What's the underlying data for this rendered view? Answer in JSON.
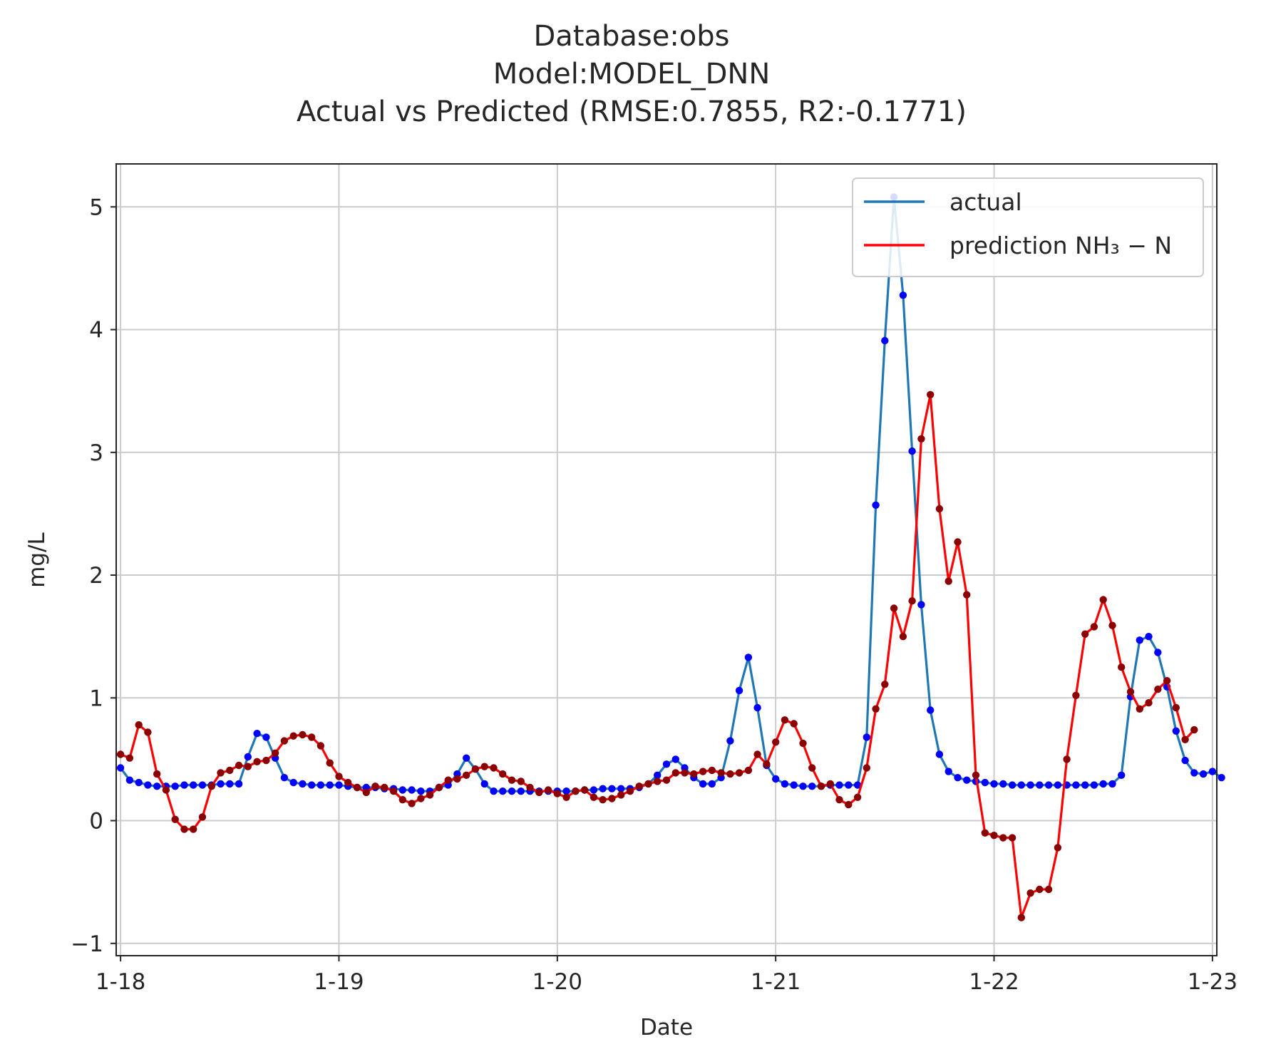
{
  "chart_data": {
    "type": "line",
    "title_lines": [
      "Database:obs",
      "Model:MODEL_DNN",
      "Actual vs Predicted (RMSE:0.7855, R2:-0.1771)"
    ],
    "xlabel": "Date",
    "ylabel": "mg/L",
    "x_tick_labels": [
      "1-18",
      "1-19",
      "1-20",
      "1-21",
      "1-22",
      "1-23"
    ],
    "y_tick_labels": [
      "−1",
      "0",
      "1",
      "2",
      "3",
      "4",
      "5"
    ],
    "y_ticks": [
      -1,
      0,
      1,
      2,
      3,
      4,
      5
    ],
    "ylim": [
      -1.1,
      5.35
    ],
    "xlim_days": [
      -0.02,
      5.02
    ],
    "x_step_hours": 1,
    "grid": true,
    "legend_position": "top-right",
    "series": [
      {
        "name": "actual",
        "color": "#1f77b4",
        "marker_color": "#0000ff",
        "values": [
          0.43,
          0.33,
          0.31,
          0.29,
          0.28,
          0.28,
          0.28,
          0.29,
          0.29,
          0.29,
          0.29,
          0.3,
          0.3,
          0.3,
          0.52,
          0.71,
          0.68,
          0.51,
          0.35,
          0.31,
          0.3,
          0.29,
          0.29,
          0.29,
          0.29,
          0.28,
          0.27,
          0.27,
          0.27,
          0.26,
          0.26,
          0.25,
          0.25,
          0.24,
          0.24,
          0.27,
          0.29,
          0.38,
          0.51,
          0.42,
          0.3,
          0.24,
          0.24,
          0.24,
          0.24,
          0.24,
          0.24,
          0.24,
          0.24,
          0.24,
          0.24,
          0.25,
          0.25,
          0.26,
          0.26,
          0.26,
          0.26,
          0.27,
          0.3,
          0.37,
          0.46,
          0.5,
          0.43,
          0.35,
          0.3,
          0.3,
          0.35,
          0.65,
          1.06,
          1.33,
          0.92,
          0.45,
          0.34,
          0.3,
          0.29,
          0.28,
          0.28,
          0.28,
          0.29,
          0.29,
          0.29,
          0.29,
          0.68,
          2.57,
          3.91,
          5.08,
          4.28,
          3.01,
          1.76,
          0.9,
          0.54,
          0.4,
          0.35,
          0.33,
          0.32,
          0.31,
          0.3,
          0.3,
          0.29,
          0.29,
          0.29,
          0.29,
          0.29,
          0.29,
          0.29,
          0.29,
          0.29,
          0.29,
          0.3,
          0.3,
          0.37,
          1.01,
          1.47,
          1.5,
          1.37,
          1.09,
          0.73,
          0.49,
          0.39,
          0.38,
          0.4,
          0.35
        ]
      },
      {
        "name": "prediction NH₃ − N",
        "color": "#ff0000",
        "marker_color": "#8b0000",
        "values": [
          0.54,
          0.51,
          0.78,
          0.72,
          0.38,
          0.25,
          0.01,
          -0.07,
          -0.07,
          0.03,
          0.28,
          0.39,
          0.41,
          0.45,
          0.44,
          0.48,
          0.49,
          0.55,
          0.65,
          0.69,
          0.7,
          0.68,
          0.61,
          0.47,
          0.36,
          0.31,
          0.27,
          0.23,
          0.28,
          0.27,
          0.24,
          0.17,
          0.14,
          0.18,
          0.21,
          0.27,
          0.33,
          0.34,
          0.37,
          0.42,
          0.44,
          0.43,
          0.38,
          0.33,
          0.32,
          0.27,
          0.23,
          0.25,
          0.22,
          0.19,
          0.24,
          0.25,
          0.19,
          0.17,
          0.18,
          0.21,
          0.24,
          0.28,
          0.3,
          0.32,
          0.33,
          0.39,
          0.39,
          0.38,
          0.4,
          0.41,
          0.39,
          0.38,
          0.39,
          0.41,
          0.54,
          0.46,
          0.64,
          0.82,
          0.79,
          0.63,
          0.43,
          0.28,
          0.3,
          0.17,
          0.13,
          0.19,
          0.43,
          0.91,
          1.11,
          1.73,
          1.5,
          1.79,
          3.11,
          3.47,
          2.54,
          1.95,
          2.27,
          1.84,
          0.37,
          -0.1,
          -0.12,
          -0.14,
          -0.14,
          -0.79,
          -0.59,
          -0.56,
          -0.56,
          -0.22,
          0.5,
          1.02,
          1.52,
          1.58,
          1.8,
          1.59,
          1.25,
          1.05,
          0.91,
          0.96,
          1.07,
          1.14,
          0.92,
          0.66,
          0.74
        ]
      }
    ]
  }
}
